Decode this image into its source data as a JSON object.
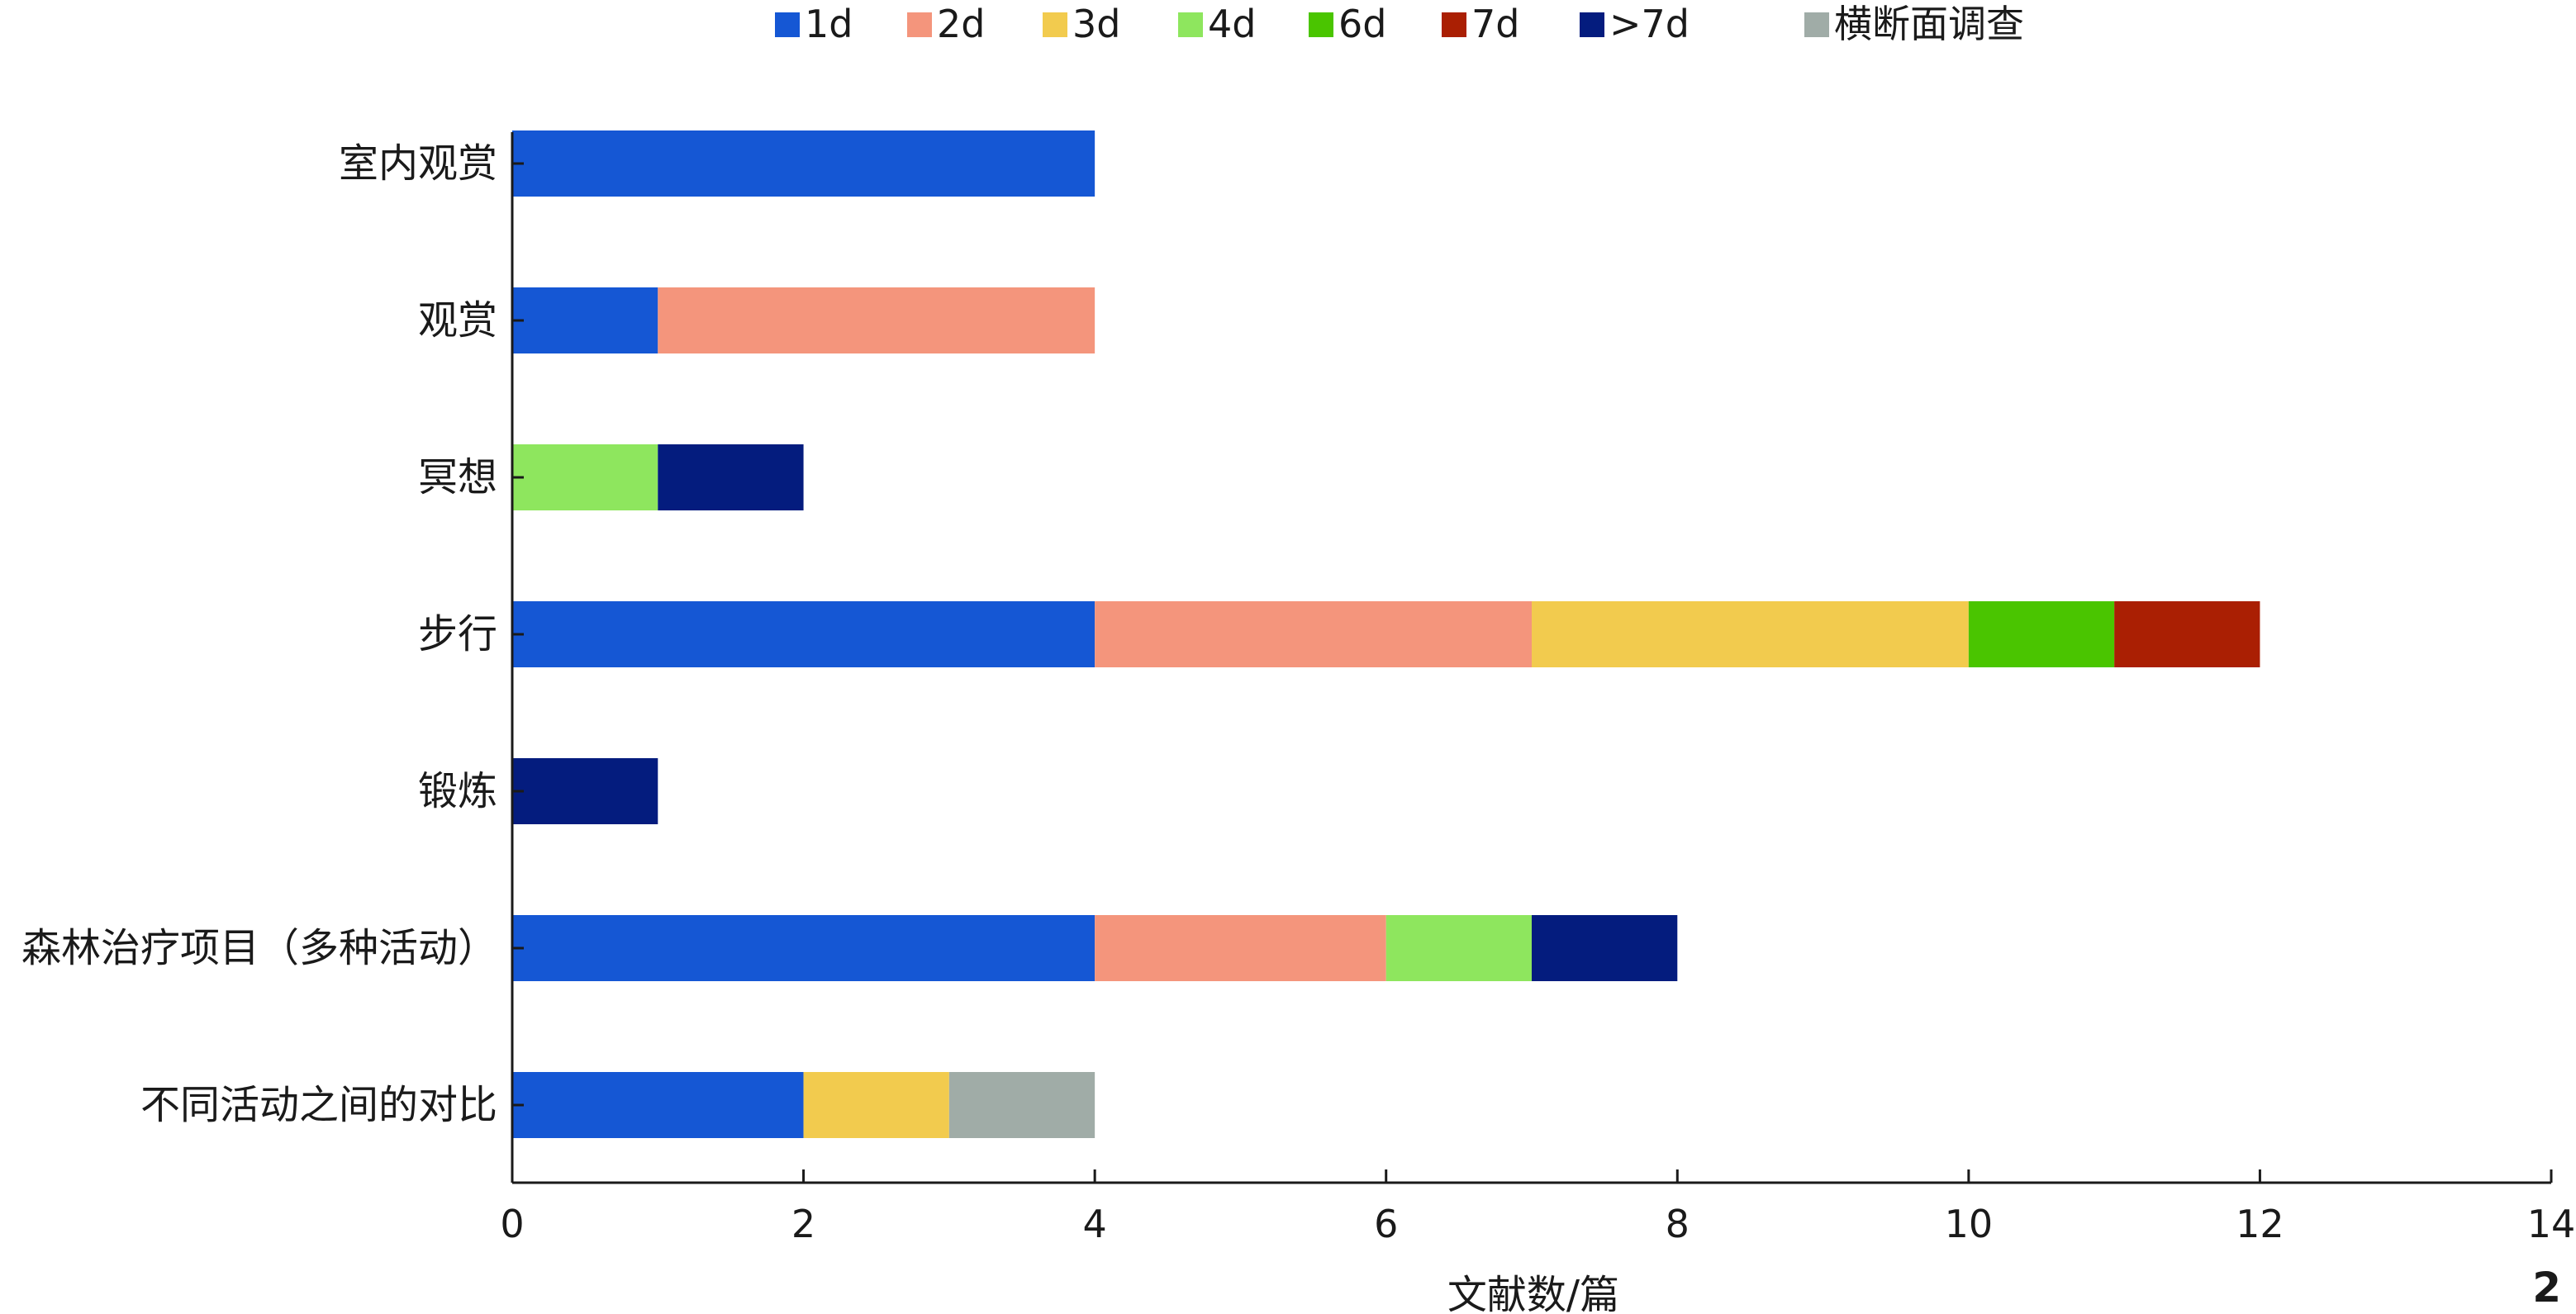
{
  "chart_data": {
    "type": "bar",
    "orientation": "horizontal",
    "stacked": true,
    "categories": [
      "室内观赏",
      "观赏",
      "冥想",
      "步行",
      "锻炼",
      "森林治疗项目（多种活动）",
      "不同活动之间的对比"
    ],
    "series": [
      {
        "name": "1d",
        "color": "#1557d4",
        "values": [
          4,
          1,
          0,
          4,
          0,
          4,
          2
        ]
      },
      {
        "name": "2d",
        "color": "#f4957c",
        "values": [
          0,
          3,
          0,
          3,
          0,
          2,
          0
        ]
      },
      {
        "name": "3d",
        "color": "#f2cb4e",
        "values": [
          0,
          0,
          0,
          3,
          0,
          0,
          1
        ]
      },
      {
        "name": "4d",
        "color": "#8ee65e",
        "values": [
          0,
          0,
          1,
          0,
          0,
          1,
          0
        ]
      },
      {
        "name": "6d",
        "color": "#4ac500",
        "values": [
          0,
          0,
          0,
          1,
          0,
          0,
          0
        ]
      },
      {
        "name": "7d",
        "color": "#aa1f03",
        "values": [
          0,
          0,
          0,
          1,
          0,
          0,
          0
        ]
      },
      {
        "name": ">7d",
        "color": "#041c7e",
        "values": [
          0,
          0,
          1,
          0,
          1,
          1,
          0
        ]
      },
      {
        "name": "横断面调查",
        "color": "#a0aca7",
        "values": [
          0,
          0,
          0,
          0,
          0,
          0,
          1
        ]
      }
    ],
    "xlim": [
      0,
      14
    ],
    "xticks": [
      0,
      2,
      4,
      6,
      8,
      10,
      12,
      14
    ],
    "xlabel": "文献数/篇",
    "ylabel": "",
    "title": "",
    "legend": "top",
    "grid": false
  },
  "corner_mark": "2"
}
